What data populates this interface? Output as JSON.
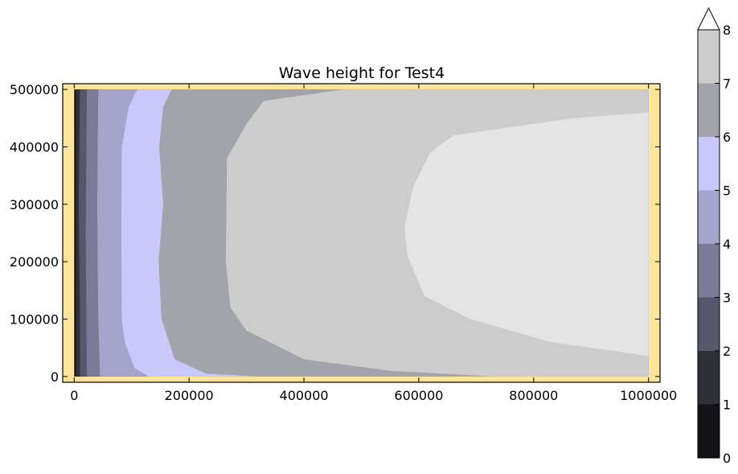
{
  "chart_data": {
    "type": "heatmap",
    "subtype": "filled-contour",
    "title": "Wave height for Test4",
    "xlabel": "",
    "ylabel": "",
    "x_ticks": [
      0,
      200000,
      400000,
      600000,
      800000,
      1000000
    ],
    "x_tick_labels": [
      "0",
      "200000",
      "400000",
      "600000",
      "800000",
      "1000000"
    ],
    "y_ticks": [
      0,
      100000,
      200000,
      300000,
      400000,
      500000
    ],
    "y_tick_labels": [
      "0",
      "100000",
      "200000",
      "300000",
      "400000",
      "500000"
    ],
    "xlim": [
      -20000,
      1020000
    ],
    "ylim": [
      -10000,
      510000
    ],
    "domain": {
      "x": [
        0,
        1000000
      ],
      "y": [
        0,
        500000
      ]
    },
    "background_color": "#ffe599",
    "grid": false,
    "colorbar": {
      "placement": "right",
      "levels": [
        0,
        1,
        2,
        3,
        4,
        5,
        6,
        7,
        8
      ],
      "tick_labels": [
        "0",
        "1",
        "2",
        "3",
        "4",
        "5",
        "6",
        "7",
        "8"
      ],
      "colors": [
        "#111116",
        "#303039",
        "#56566c",
        "#7b7b98",
        "#a4a4cc",
        "#c8c8fb",
        "#a3a3ab",
        "#cccccc",
        "#e4e4e4"
      ],
      "extend": "max",
      "extend_color": "#ffffff"
    },
    "contour_boundaries": [
      {
        "level": 1,
        "points": [
          [
            3000,
            500000
          ],
          [
            3000,
            0
          ]
        ]
      },
      {
        "level": 2,
        "points": [
          [
            10000,
            500000
          ],
          [
            8000,
            300000
          ],
          [
            10000,
            100000
          ],
          [
            10000,
            0
          ]
        ]
      },
      {
        "level": 3,
        "points": [
          [
            22000,
            500000
          ],
          [
            20000,
            250000
          ],
          [
            22000,
            0
          ]
        ]
      },
      {
        "level": 4,
        "points": [
          [
            42000,
            500000
          ],
          [
            40000,
            300000
          ],
          [
            42000,
            100000
          ],
          [
            45000,
            0
          ]
        ]
      },
      {
        "level": 5,
        "points": [
          [
            110000,
            500000
          ],
          [
            95000,
            470000
          ],
          [
            83000,
            400000
          ],
          [
            82000,
            250000
          ],
          [
            83000,
            100000
          ],
          [
            88000,
            60000
          ],
          [
            105000,
            15000
          ],
          [
            130000,
            0
          ]
        ]
      },
      {
        "level": 6,
        "points": [
          [
            170000,
            500000
          ],
          [
            155000,
            470000
          ],
          [
            148000,
            400000
          ],
          [
            155000,
            300000
          ],
          [
            147000,
            200000
          ],
          [
            152000,
            100000
          ],
          [
            175000,
            30000
          ],
          [
            230000,
            5000
          ],
          [
            320000,
            0
          ]
        ]
      },
      {
        "level": 7,
        "points": [
          [
            470000,
            500000
          ],
          [
            330000,
            480000
          ],
          [
            300000,
            440000
          ],
          [
            266000,
            380000
          ],
          [
            264000,
            200000
          ],
          [
            272000,
            120000
          ],
          [
            300000,
            80000
          ],
          [
            400000,
            30000
          ],
          [
            550000,
            10000
          ],
          [
            730000,
            0
          ]
        ]
      },
      {
        "level": 8,
        "points": [
          [
            1000000,
            460000
          ],
          [
            870000,
            450000
          ],
          [
            660000,
            420000
          ],
          [
            620000,
            390000
          ],
          [
            590000,
            330000
          ],
          [
            575000,
            260000
          ],
          [
            580000,
            210000
          ],
          [
            610000,
            140000
          ],
          [
            690000,
            100000
          ],
          [
            830000,
            60000
          ],
          [
            970000,
            40000
          ],
          [
            1000000,
            35000
          ]
        ]
      }
    ]
  }
}
